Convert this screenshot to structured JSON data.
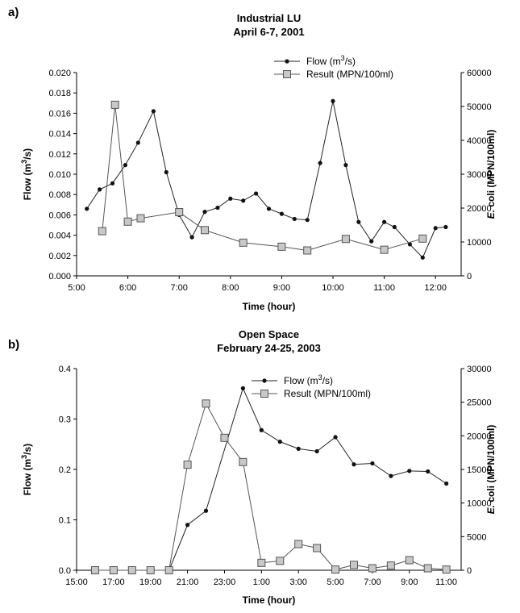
{
  "chart_data": [
    {
      "panel_label": "a)",
      "type": "line",
      "title": "Industrial LU",
      "subtitle": "April 6-7, 2001",
      "xlabel": "Time (hour)",
      "ylabel": "Flow (m3/s)",
      "y2label": "E. coli (MPN/100ml)",
      "x_ticks": [
        "5:00",
        "6:00",
        "7:00",
        "8:00",
        "9:00",
        "10:00",
        "11:00",
        "12:00"
      ],
      "x_tick_values": [
        5,
        6,
        7,
        8,
        9,
        10,
        11,
        12
      ],
      "xlim": [
        5,
        12.5
      ],
      "ylim": [
        0,
        0.02
      ],
      "y_ticks": [
        "0.000",
        "0.002",
        "0.004",
        "0.006",
        "0.008",
        "0.010",
        "0.012",
        "0.014",
        "0.016",
        "0.018",
        "0.020"
      ],
      "y_tick_values": [
        0,
        0.002,
        0.004,
        0.006,
        0.008,
        0.01,
        0.012,
        0.014,
        0.016,
        0.018,
        0.02
      ],
      "y2lim": [
        0,
        60000
      ],
      "y2_ticks": [
        "0",
        "10000",
        "20000",
        "30000",
        "40000",
        "50000",
        "60000"
      ],
      "y2_tick_values": [
        0,
        10000,
        20000,
        30000,
        40000,
        50000,
        60000
      ],
      "legend_position": "top-right",
      "series": [
        {
          "name": "Flow (m3/s)",
          "axis": "left",
          "marker": "dot",
          "x": [
            5.2,
            5.45,
            5.7,
            5.95,
            6.2,
            6.5,
            6.75,
            7.0,
            7.25,
            7.5,
            7.75,
            8.0,
            8.25,
            8.5,
            8.75,
            9.0,
            9.25,
            9.5,
            9.75,
            10.0,
            10.25,
            10.5,
            10.75,
            11.0,
            11.2,
            11.5,
            11.75,
            12.0,
            12.2
          ],
          "values": [
            0.0066,
            0.0085,
            0.0091,
            0.0109,
            0.0131,
            0.0162,
            0.0102,
            0.006,
            0.0038,
            0.0063,
            0.0067,
            0.0076,
            0.0074,
            0.0081,
            0.0066,
            0.0061,
            0.0056,
            0.0055,
            0.0111,
            0.0172,
            0.0109,
            0.0053,
            0.0034,
            0.0053,
            0.0048,
            0.0031,
            0.0018,
            0.0047,
            0.0048
          ]
        },
        {
          "name": "Result (MPN/100ml)",
          "axis": "right",
          "marker": "square",
          "x": [
            5.5,
            5.75,
            6.0,
            6.25,
            7.0,
            7.5,
            8.25,
            9.0,
            9.5,
            10.25,
            11.0,
            11.75
          ],
          "values": [
            13200,
            50500,
            16000,
            17000,
            18800,
            13500,
            9800,
            8600,
            7500,
            10900,
            7700,
            11000
          ]
        }
      ]
    },
    {
      "panel_label": "b)",
      "type": "line",
      "title": "Open Space",
      "subtitle": "February 24-25, 2003",
      "xlabel": "Time (hour)",
      "ylabel": "Flow (m3/s)",
      "y2label": "E. coli (MPN/100ml)",
      "x_ticks": [
        "15:00",
        "17:00",
        "19:00",
        "21:00",
        "23:00",
        "1:00",
        "3:00",
        "5:00",
        "7:00",
        "9:00",
        "11:00"
      ],
      "x_tick_values": [
        15,
        17,
        19,
        21,
        23,
        25,
        27,
        29,
        31,
        33,
        35
      ],
      "xlim": [
        15,
        35.8
      ],
      "ylim": [
        0,
        0.4
      ],
      "y_ticks": [
        "0.0",
        "0.1",
        "0.2",
        "0.3",
        "0.4"
      ],
      "y_tick_values": [
        0,
        0.1,
        0.2,
        0.3,
        0.4
      ],
      "y2lim": [
        0,
        30000
      ],
      "y2_ticks": [
        "0",
        "5000",
        "10000",
        "15000",
        "20000",
        "25000",
        "30000"
      ],
      "y2_tick_values": [
        0,
        5000,
        10000,
        15000,
        20000,
        25000,
        30000
      ],
      "legend_position": "top-right",
      "series": [
        {
          "name": "Flow (m3/s)",
          "axis": "left",
          "marker": "dot",
          "x": [
            16,
            17,
            18,
            19,
            20,
            21,
            22,
            24,
            25,
            26,
            27,
            28,
            29,
            30,
            31,
            32,
            33,
            34,
            35
          ],
          "values": [
            0.0,
            0.0,
            0.0,
            0.0,
            0.0,
            0.09,
            0.118,
            0.361,
            0.278,
            0.255,
            0.241,
            0.236,
            0.264,
            0.21,
            0.212,
            0.187,
            0.197,
            0.196,
            0.172
          ]
        },
        {
          "name": "Result (MPN/100ml)",
          "axis": "right",
          "marker": "square",
          "x": [
            16,
            17,
            18,
            19,
            20,
            21,
            22,
            23,
            24,
            25,
            26,
            27,
            28,
            29,
            30,
            31,
            32,
            33,
            34,
            35
          ],
          "values": [
            0,
            0,
            0,
            0,
            0,
            15700,
            24800,
            19700,
            16100,
            1100,
            1400,
            3900,
            3300,
            100,
            800,
            300,
            700,
            1500,
            300,
            100
          ]
        }
      ]
    }
  ]
}
